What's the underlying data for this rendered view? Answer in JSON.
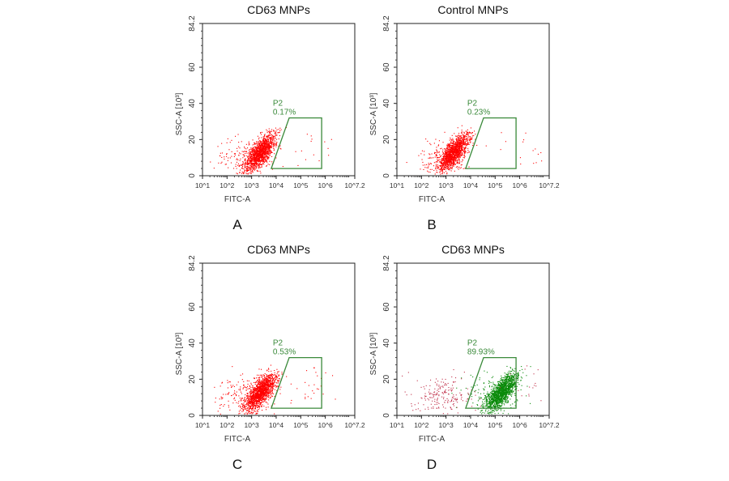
{
  "chart_data": [
    {
      "type": "scatter",
      "panel_label": "A",
      "title": "CD63 MNPs",
      "xlabel": "FITC-A",
      "ylabel": "SSC-A [10³]",
      "x_scale": "log",
      "xlim_log10": [
        1,
        7.2
      ],
      "ylim": [
        0,
        84.2
      ],
      "x_ticks": [
        "10^1",
        "10^2",
        "10^3",
        "10^4",
        "10^5",
        "10^6",
        "10^7.2"
      ],
      "y_ticks": [
        "0",
        "20",
        "40",
        "60",
        "84.2"
      ],
      "gate": {
        "name": "P2",
        "percent": "0.17%",
        "vertices_log10x_y": [
          [
            3.8,
            4
          ],
          [
            4.53,
            32
          ],
          [
            5.85,
            32
          ],
          [
            5.85,
            4
          ]
        ]
      },
      "populations": [
        {
          "color": "#ff0000",
          "center_log10x": 3.35,
          "center_y": 13,
          "count": 1400,
          "spread": "dense"
        },
        {
          "color": "#ff0000",
          "center_log10x": 2.7,
          "center_y": 10,
          "count": 160,
          "spread": "sparse"
        },
        {
          "color": "#ff0000",
          "center_log10x": 5.8,
          "center_y": 15,
          "count": 14,
          "spread": "outliers"
        }
      ]
    },
    {
      "type": "scatter",
      "panel_label": "B",
      "title": "Control MNPs",
      "xlabel": "FITC-A",
      "ylabel": "SSC-A [10³]",
      "x_scale": "log",
      "xlim_log10": [
        1,
        7.2
      ],
      "ylim": [
        0,
        84.2
      ],
      "x_ticks": [
        "10^1",
        "10^2",
        "10^3",
        "10^4",
        "10^5",
        "10^6",
        "10^7.2"
      ],
      "y_ticks": [
        "0",
        "20",
        "40",
        "60",
        "84.2"
      ],
      "gate": {
        "name": "P2",
        "percent": "0.23%",
        "vertices_log10x_y": [
          [
            3.8,
            4
          ],
          [
            4.53,
            32
          ],
          [
            5.85,
            32
          ],
          [
            5.85,
            4
          ]
        ]
      },
      "populations": [
        {
          "color": "#ff0000",
          "center_log10x": 3.3,
          "center_y": 13,
          "count": 1400,
          "spread": "dense"
        },
        {
          "color": "#ff0000",
          "center_log10x": 2.8,
          "center_y": 10,
          "count": 120,
          "spread": "sparse"
        },
        {
          "color": "#ff0000",
          "center_log10x": 6.2,
          "center_y": 15,
          "count": 18,
          "spread": "outliers"
        }
      ]
    },
    {
      "type": "scatter",
      "panel_label": "C",
      "title": "CD63 MNPs",
      "xlabel": "FITC-A",
      "ylabel": "SSC-A [10³]",
      "x_scale": "log",
      "xlim_log10": [
        1,
        7.2
      ],
      "ylim": [
        0,
        84.2
      ],
      "x_ticks": [
        "10^1",
        "10^2",
        "10^3",
        "10^4",
        "10^5",
        "10^6",
        "10^7.2"
      ],
      "y_ticks": [
        "0",
        "20",
        "40",
        "60",
        "84.2"
      ],
      "gate": {
        "name": "P2",
        "percent": "0.53%",
        "vertices_log10x_y": [
          [
            3.8,
            4
          ],
          [
            4.53,
            32
          ],
          [
            5.85,
            32
          ],
          [
            5.85,
            4
          ]
        ]
      },
      "populations": [
        {
          "color": "#ff0000",
          "center_log10x": 3.35,
          "center_y": 13,
          "count": 1400,
          "spread": "dense"
        },
        {
          "color": "#ff0000",
          "center_log10x": 2.7,
          "center_y": 11,
          "count": 180,
          "spread": "sparse"
        },
        {
          "color": "#ff0000",
          "center_log10x": 5.6,
          "center_y": 15,
          "count": 30,
          "spread": "outliers"
        }
      ]
    },
    {
      "type": "scatter",
      "panel_label": "D",
      "title": "CD63 MNPs",
      "xlabel": "FITC-A",
      "ylabel": "SSC-A [10³]",
      "x_scale": "log",
      "xlim_log10": [
        1,
        7.2
      ],
      "ylim": [
        0,
        84.2
      ],
      "x_ticks": [
        "10^1",
        "10^2",
        "10^3",
        "10^4",
        "10^5",
        "10^6",
        "10^7.2"
      ],
      "y_ticks": [
        "0",
        "20",
        "40",
        "60",
        "84.2"
      ],
      "gate": {
        "name": "P2",
        "percent": "89.93%",
        "vertices_log10x_y": [
          [
            3.8,
            4
          ],
          [
            4.53,
            32
          ],
          [
            5.85,
            32
          ],
          [
            5.85,
            4
          ]
        ]
      },
      "populations": [
        {
          "color": "#0a8a0a",
          "center_log10x": 5.25,
          "center_y": 13,
          "count": 1500,
          "spread": "dense"
        },
        {
          "color": "#0a8a0a",
          "center_log10x": 4.9,
          "center_y": 12,
          "count": 150,
          "spread": "sparse"
        },
        {
          "color": "#c0304a",
          "center_log10x": 2.9,
          "center_y": 11,
          "count": 200,
          "spread": "sparse"
        },
        {
          "color": "#c0304a",
          "center_log10x": 6.3,
          "center_y": 16,
          "count": 18,
          "spread": "outliers"
        }
      ]
    }
  ]
}
